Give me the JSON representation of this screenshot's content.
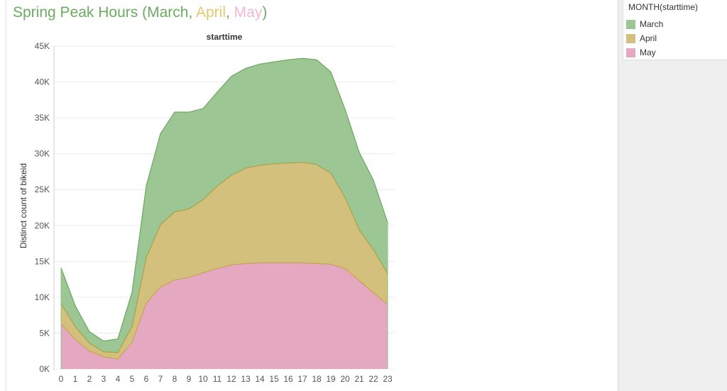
{
  "title": {
    "prefix": "Spring Peak Hours (",
    "march": "March",
    "sep1": ", ",
    "april": "April",
    "sep2": ", ",
    "may": "May",
    "suffix": ")"
  },
  "legend": {
    "title": "MONTH(starttime)",
    "items": [
      {
        "label": "March",
        "color": "#9cc693"
      },
      {
        "label": "April",
        "color": "#d3c07c"
      },
      {
        "label": "May",
        "color": "#e5a8c1"
      }
    ]
  },
  "colors": {
    "march": "#9cc693",
    "april": "#d3c07c",
    "may": "#e5a8c1",
    "march_line": "#6aa85f",
    "april_line": "#a6a34a",
    "may_line": "#c9a15a",
    "title_march": "#6aad5f",
    "title_april": "#e3c96f",
    "title_may": "#f4b7cd",
    "title_base": "#6aad5f"
  },
  "chart_data": {
    "type": "area",
    "stacked": true,
    "title": "starttime",
    "xlabel": "",
    "ylabel": "Distinct count of bikeid",
    "x": [
      0,
      1,
      2,
      3,
      4,
      5,
      6,
      7,
      8,
      9,
      10,
      11,
      12,
      13,
      14,
      15,
      16,
      17,
      18,
      19,
      20,
      21,
      22,
      23
    ],
    "xtick_labels": [
      "0",
      "1",
      "2",
      "3",
      "4",
      "5",
      "6",
      "7",
      "8",
      "9",
      "10",
      "11",
      "12",
      "13",
      "14",
      "15",
      "16",
      "17",
      "18",
      "19",
      "20",
      "21",
      "22",
      "23"
    ],
    "ylim": [
      0,
      45000
    ],
    "ytick_values": [
      0,
      5000,
      10000,
      15000,
      20000,
      25000,
      30000,
      35000,
      40000,
      45000
    ],
    "ytick_labels": [
      "0K",
      "5K",
      "10K",
      "15K",
      "20K",
      "25K",
      "30K",
      "35K",
      "40K",
      "45K"
    ],
    "grid": true,
    "series": [
      {
        "name": "May",
        "values": [
          6300,
          4100,
          2500,
          1700,
          1400,
          3700,
          9200,
          11400,
          12400,
          12800,
          13400,
          14000,
          14500,
          14700,
          14800,
          14800,
          14800,
          14800,
          14700,
          14600,
          14000,
          12300,
          10600,
          9000
        ]
      },
      {
        "name": "April",
        "values": [
          2800,
          1800,
          1100,
          700,
          900,
          2200,
          6300,
          8700,
          9500,
          9500,
          10200,
          11500,
          12500,
          13300,
          13600,
          13800,
          13900,
          14000,
          13800,
          12700,
          9900,
          7100,
          6000,
          4300
        ]
      },
      {
        "name": "March",
        "values": [
          5000,
          2900,
          1600,
          1500,
          1900,
          4800,
          10000,
          12700,
          13900,
          13500,
          12700,
          13100,
          13800,
          13900,
          14100,
          14200,
          14400,
          14500,
          14600,
          14100,
          12300,
          10800,
          9700,
          7100
        ]
      }
    ]
  }
}
